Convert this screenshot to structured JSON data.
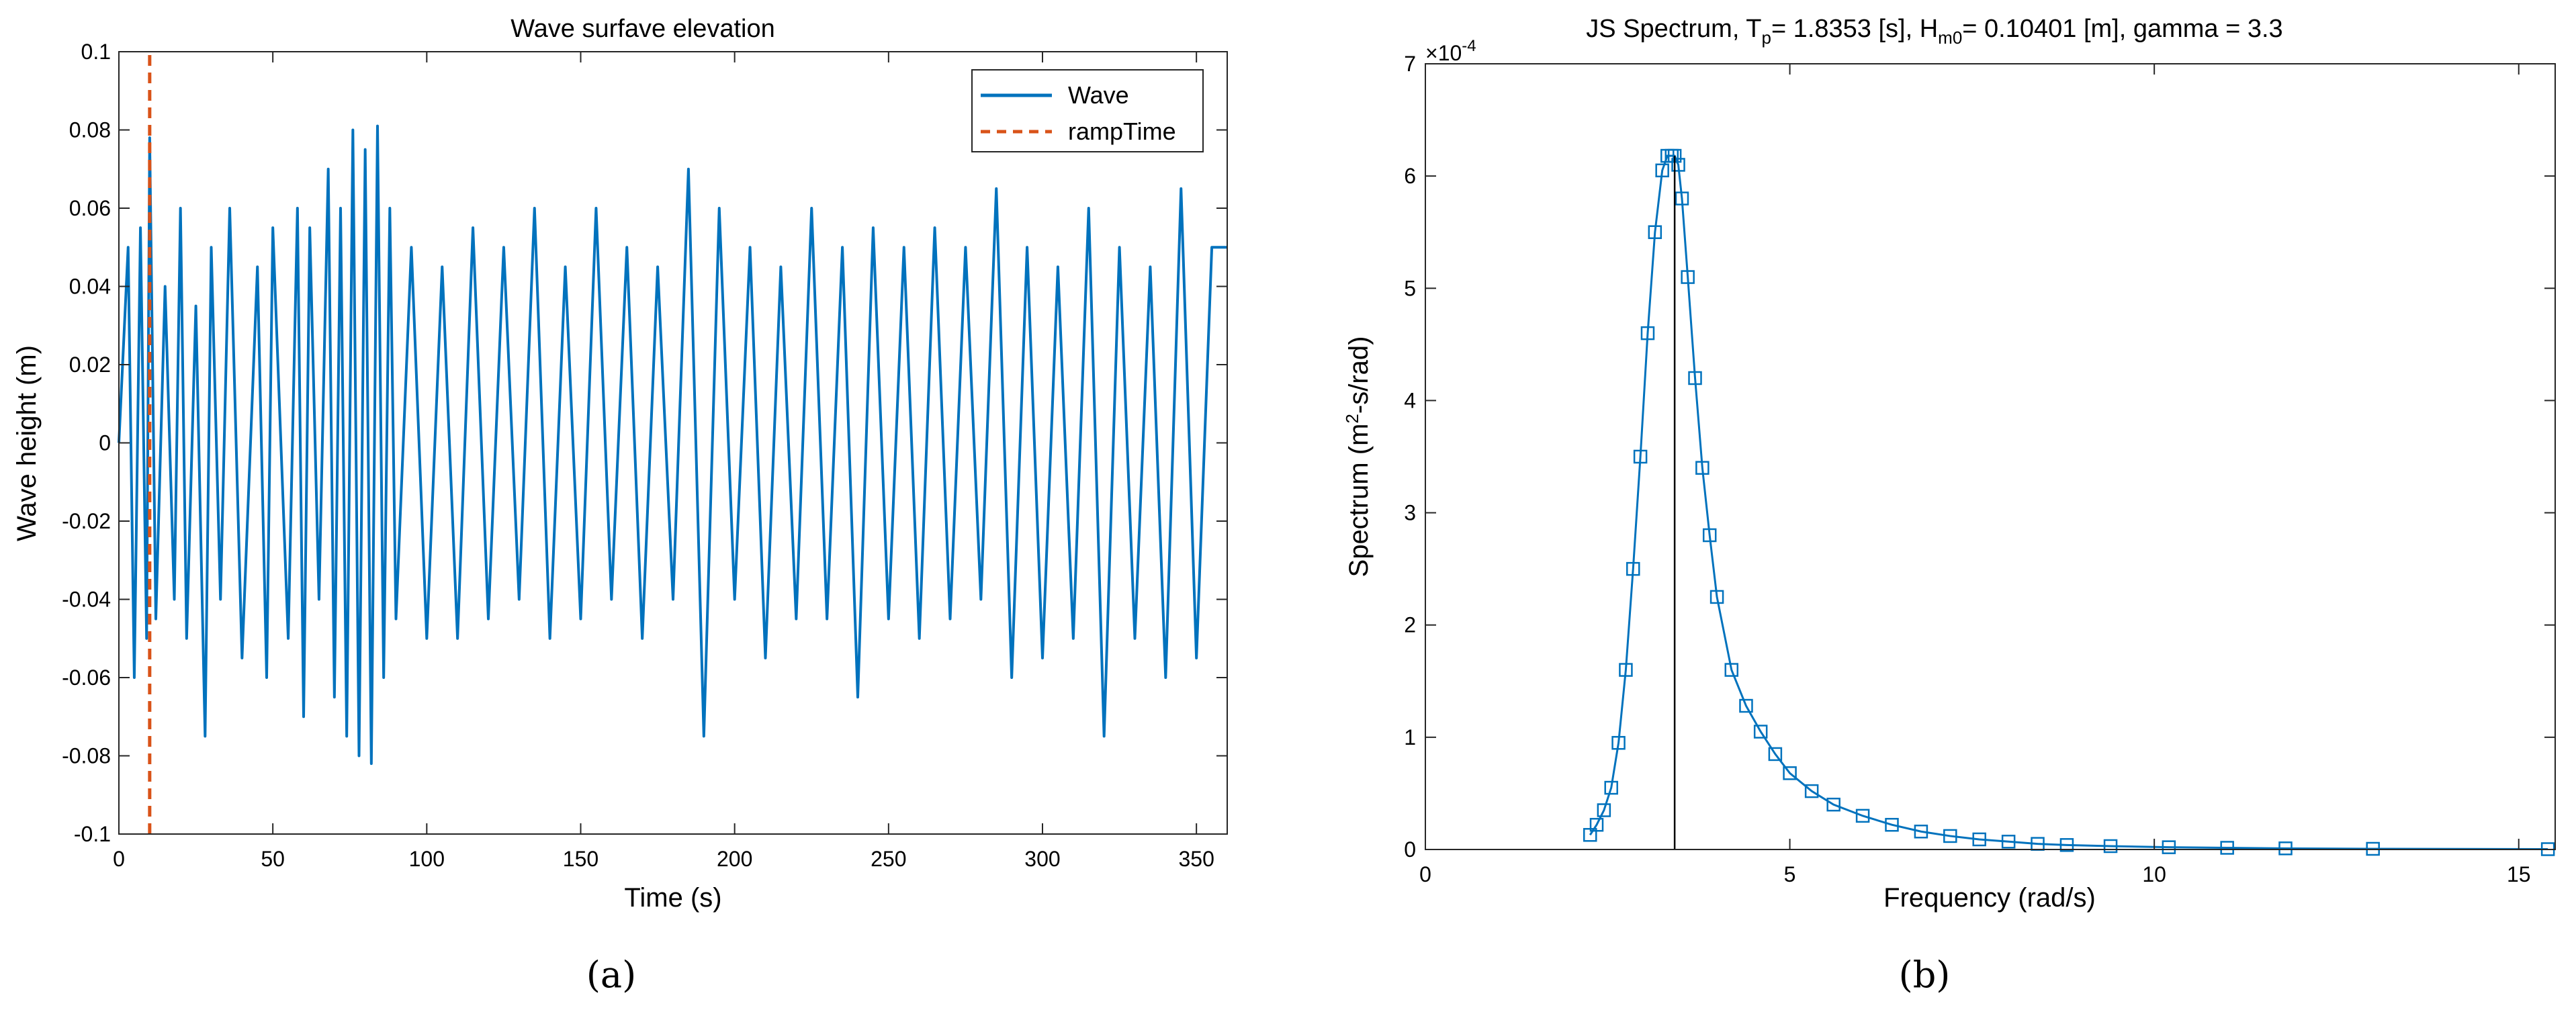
{
  "chart_data": [
    {
      "type": "line",
      "panel_label": "(a)",
      "title": "Wave surfave elevation",
      "xlabel": "Time (s)",
      "ylabel": "Wave height (m)",
      "xlim": [
        0,
        360
      ],
      "ylim": [
        -0.1,
        0.1
      ],
      "xticks": [
        0,
        50,
        100,
        150,
        200,
        250,
        300,
        350
      ],
      "xtick_labels": [
        "0",
        "50",
        "100",
        "150",
        "200",
        "250",
        "300",
        "350"
      ],
      "yticks": [
        -0.1,
        -0.08,
        -0.06,
        -0.04,
        -0.02,
        0,
        0.02,
        0.04,
        0.06,
        0.08,
        0.1
      ],
      "ytick_labels": [
        "-0.1",
        "-0.08",
        "-0.06",
        "-0.04",
        "-0.02",
        "0",
        "0.02",
        "0.04",
        "0.06",
        "0.08",
        "0.1"
      ],
      "grid": false,
      "legend_position": "top-right",
      "series": [
        {
          "name": "Wave",
          "style": "solid",
          "color": "#0072BD",
          "x": [
            0,
            3,
            5,
            7,
            9,
            10,
            12,
            15,
            18,
            20,
            22,
            25,
            28,
            30,
            33,
            36,
            40,
            45,
            48,
            50,
            55,
            58,
            60,
            62,
            65,
            68,
            70,
            72,
            74,
            76,
            78,
            80,
            82,
            84,
            86,
            88,
            90,
            95,
            100,
            105,
            110,
            115,
            120,
            125,
            130,
            135,
            140,
            145,
            150,
            155,
            160,
            165,
            170,
            175,
            180,
            185,
            190,
            195,
            200,
            205,
            210,
            215,
            220,
            225,
            230,
            235,
            240,
            245,
            250,
            255,
            260,
            265,
            270,
            275,
            280,
            285,
            290,
            295,
            300,
            305,
            310,
            315,
            320,
            325,
            330,
            335,
            340,
            345,
            350,
            355,
            360
          ],
          "y": [
            0.0,
            0.05,
            -0.06,
            0.055,
            -0.05,
            0.078,
            -0.045,
            0.04,
            -0.04,
            0.06,
            -0.05,
            0.035,
            -0.075,
            0.05,
            -0.04,
            0.06,
            -0.055,
            0.045,
            -0.06,
            0.055,
            -0.05,
            0.06,
            -0.07,
            0.055,
            -0.04,
            0.07,
            -0.065,
            0.06,
            -0.075,
            0.08,
            -0.08,
            0.075,
            -0.082,
            0.081,
            -0.06,
            0.06,
            -0.045,
            0.05,
            -0.05,
            0.045,
            -0.05,
            0.055,
            -0.045,
            0.05,
            -0.04,
            0.06,
            -0.05,
            0.045,
            -0.045,
            0.06,
            -0.04,
            0.05,
            -0.05,
            0.045,
            -0.04,
            0.07,
            -0.075,
            0.06,
            -0.04,
            0.05,
            -0.055,
            0.045,
            -0.045,
            0.06,
            -0.045,
            0.05,
            -0.065,
            0.055,
            -0.045,
            0.05,
            -0.05,
            0.055,
            -0.045,
            0.05,
            -0.04,
            0.065,
            -0.06,
            0.05,
            -0.055,
            0.045,
            -0.05,
            0.06,
            -0.075,
            0.05,
            -0.05,
            0.045,
            -0.06,
            0.065,
            -0.055,
            0.05,
            0.05
          ]
        },
        {
          "name": "rampTime",
          "style": "dashed",
          "color": "#D95319",
          "x": [
            10,
            10
          ],
          "y": [
            -0.1,
            0.1
          ]
        }
      ]
    },
    {
      "type": "scatter",
      "panel_label": "(b)",
      "title": "JS Spectrum, T",
      "title_parts": [
        "JS Spectrum, T",
        "p",
        "= 1.8353 [s], H",
        "m0",
        "= 0.10401 [m], gamma = 3.3"
      ],
      "xlabel": "Frequency (rad/s)",
      "ylabel_parts": [
        "Spectrum (m",
        "2",
        "-s/rad)"
      ],
      "y_exponent_label": "×10",
      "y_exponent": "-4",
      "xlim": [
        0,
        15.5
      ],
      "ylim": [
        0,
        7
      ],
      "xticks": [
        0,
        5,
        10,
        15
      ],
      "xtick_labels": [
        "0",
        "5",
        "10",
        "15"
      ],
      "yticks": [
        0,
        1,
        2,
        3,
        4,
        5,
        6,
        7
      ],
      "ytick_labels": [
        "0",
        "1",
        "2",
        "3",
        "4",
        "5",
        "6",
        "7"
      ],
      "grid": false,
      "peak_line_x": 3.42,
      "series": [
        {
          "name": "",
          "marker": "square",
          "color": "#0072BD",
          "x": [
            2.26,
            2.35,
            2.45,
            2.55,
            2.65,
            2.75,
            2.85,
            2.95,
            3.05,
            3.15,
            3.25,
            3.32,
            3.38,
            3.42,
            3.47,
            3.52,
            3.6,
            3.7,
            3.8,
            3.9,
            4.0,
            4.2,
            4.4,
            4.6,
            4.8,
            5.0,
            5.3,
            5.6,
            6.0,
            6.4,
            6.8,
            7.2,
            7.6,
            8.0,
            8.4,
            8.8,
            9.4,
            10.2,
            11.0,
            11.8,
            13.0,
            15.4
          ],
          "y": [
            0.13,
            0.22,
            0.35,
            0.55,
            0.95,
            1.6,
            2.5,
            3.5,
            4.6,
            5.5,
            6.05,
            6.18,
            6.18,
            6.18,
            6.1,
            5.8,
            5.1,
            4.2,
            3.4,
            2.8,
            2.25,
            1.6,
            1.28,
            1.05,
            0.85,
            0.68,
            0.52,
            0.4,
            0.3,
            0.22,
            0.16,
            0.12,
            0.09,
            0.07,
            0.05,
            0.04,
            0.03,
            0.02,
            0.015,
            0.01,
            0.006,
            0.003
          ]
        }
      ]
    }
  ]
}
